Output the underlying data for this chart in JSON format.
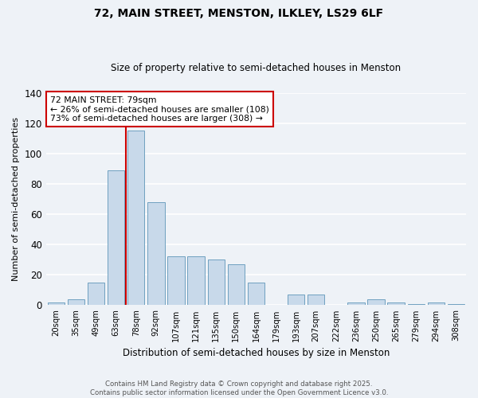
{
  "title": "72, MAIN STREET, MENSTON, ILKLEY, LS29 6LF",
  "subtitle": "Size of property relative to semi-detached houses in Menston",
  "xlabel": "Distribution of semi-detached houses by size in Menston",
  "ylabel": "Number of semi-detached properties",
  "bin_labels": [
    "20sqm",
    "35sqm",
    "49sqm",
    "63sqm",
    "78sqm",
    "92sqm",
    "107sqm",
    "121sqm",
    "135sqm",
    "150sqm",
    "164sqm",
    "179sqm",
    "193sqm",
    "207sqm",
    "222sqm",
    "236sqm",
    "250sqm",
    "265sqm",
    "279sqm",
    "294sqm",
    "308sqm"
  ],
  "bar_values": [
    2,
    4,
    15,
    89,
    115,
    68,
    32,
    32,
    30,
    27,
    15,
    0,
    7,
    7,
    0,
    2,
    4,
    2,
    1,
    2,
    1
  ],
  "bar_color": "#c8d9ea",
  "bar_edge_color": "#6fa0c0",
  "property_label": "72 MAIN STREET: 79sqm",
  "annotation_line1": "← 26% of semi-detached houses are smaller (108)",
  "annotation_line2": "73% of semi-detached houses are larger (308) →",
  "vline_color": "#cc0000",
  "vline_bin_index": 4,
  "box_color": "#cc0000",
  "ylim": [
    0,
    140
  ],
  "yticks": [
    0,
    20,
    40,
    60,
    80,
    100,
    120,
    140
  ],
  "footer_line1": "Contains HM Land Registry data © Crown copyright and database right 2025.",
  "footer_line2": "Contains public sector information licensed under the Open Government Licence v3.0.",
  "bg_color": "#eef2f7",
  "grid_color": "#ffffff"
}
